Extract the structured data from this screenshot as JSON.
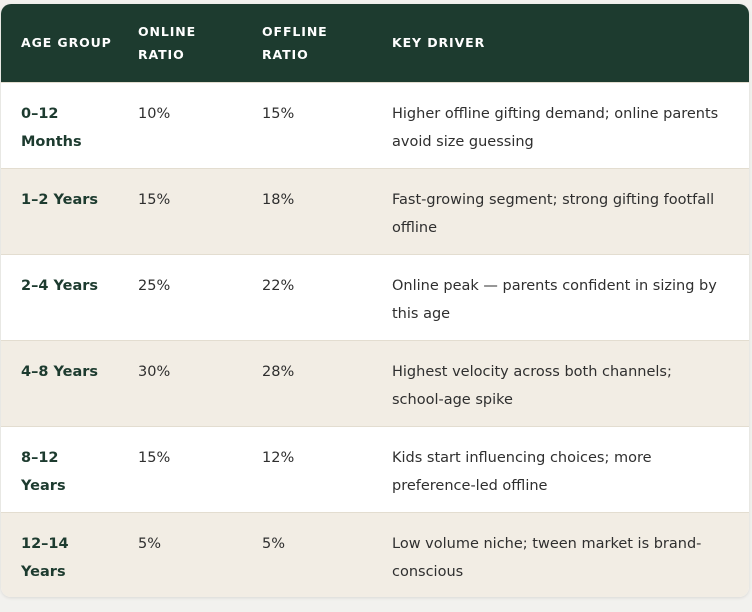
{
  "table": {
    "headers": {
      "age_group": "AGE GROUP",
      "online_ratio": "ONLINE RATIO",
      "offline_ratio": "OFFLINE RATIO",
      "key_driver": "KEY DRIVER"
    },
    "rows": [
      {
        "age_group": "0–12 Months",
        "online_ratio": "10%",
        "offline_ratio": "15%",
        "key_driver": "Higher offline gifting demand; online parents avoid size guessing"
      },
      {
        "age_group": "1–2 Years",
        "online_ratio": "15%",
        "offline_ratio": "18%",
        "key_driver": "Fast-growing segment; strong gifting footfall offline"
      },
      {
        "age_group": "2–4 Years",
        "online_ratio": "25%",
        "offline_ratio": "22%",
        "key_driver": "Online peak — parents confident in sizing by this age"
      },
      {
        "age_group": "4–8 Years",
        "online_ratio": "30%",
        "offline_ratio": "28%",
        "key_driver": "Highest velocity across both channels; school-age spike"
      },
      {
        "age_group": "8–12 Years",
        "online_ratio": "15%",
        "offline_ratio": "12%",
        "key_driver": "Kids start influencing choices; more preference-led offline"
      },
      {
        "age_group": "12–14 Years",
        "online_ratio": "5%",
        "offline_ratio": "5%",
        "key_driver": "Low volume niche; tween market is brand-conscious"
      }
    ]
  },
  "colors": {
    "header_bg": "#1d3b2f",
    "header_text": "#ffffff",
    "row_alt_bg": "#f2ede4",
    "age_text": "#1d3b2f"
  }
}
